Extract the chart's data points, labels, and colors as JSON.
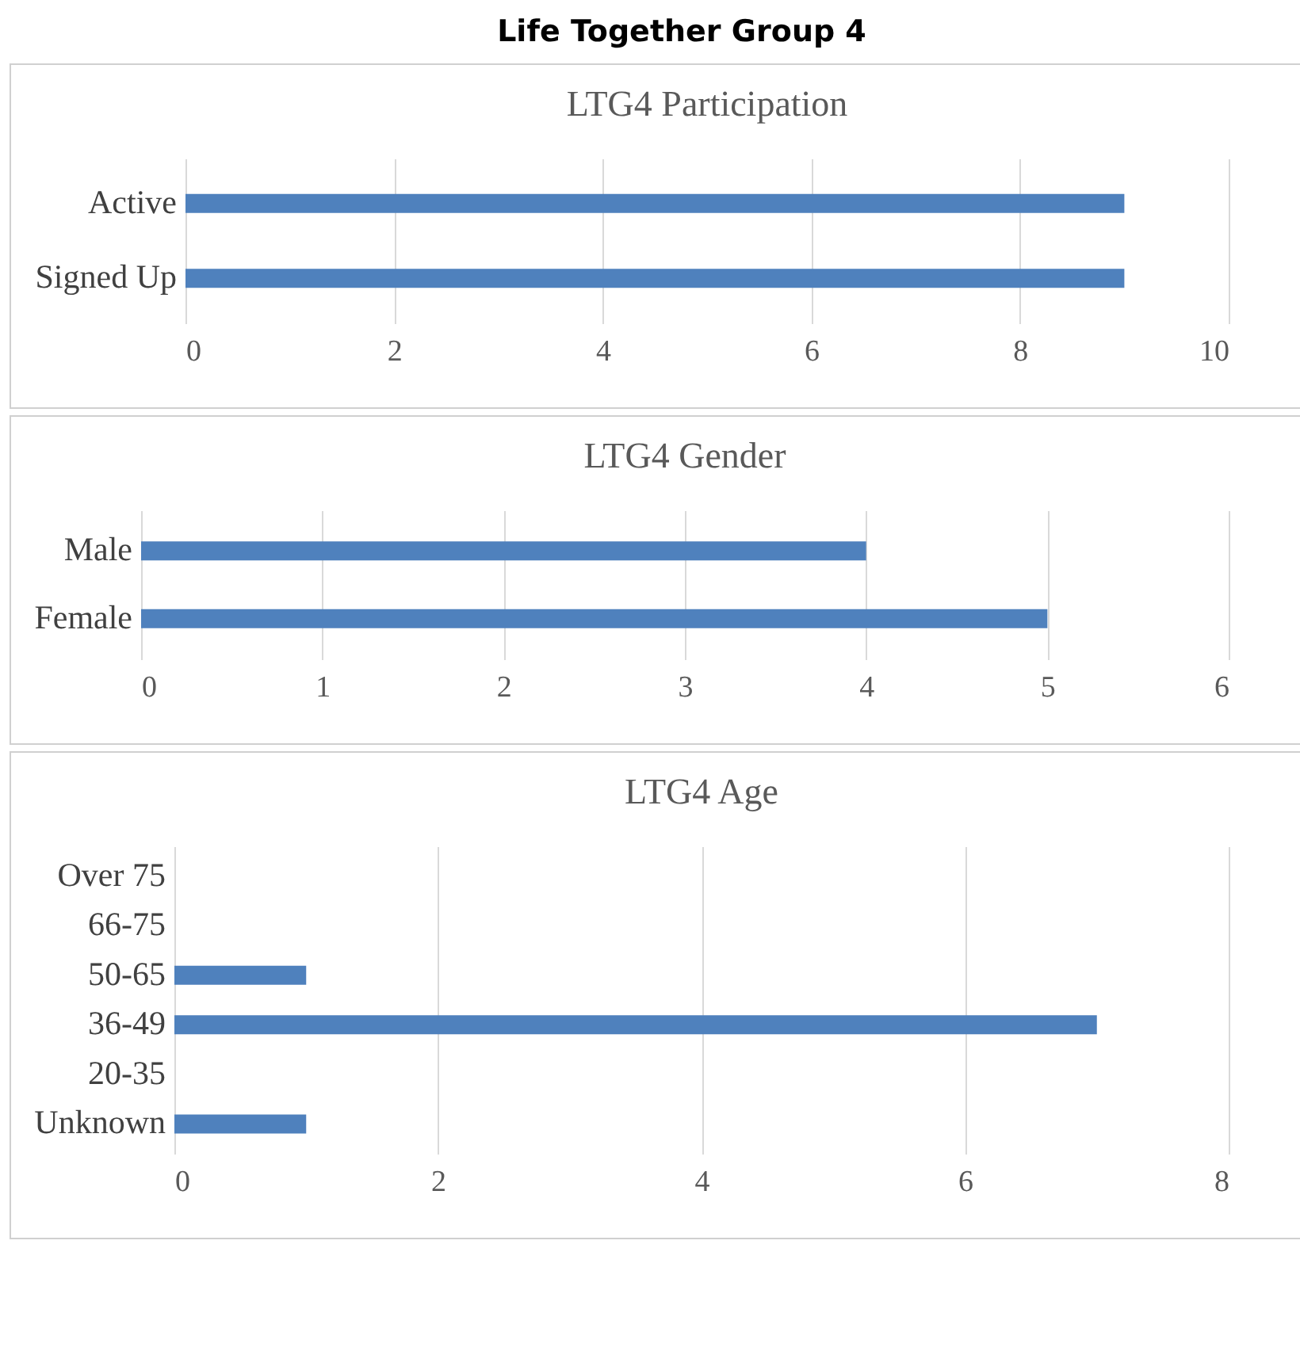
{
  "chart_data": [
    {
      "type": "bar",
      "orientation": "horizontal",
      "title": "LTG4 Participation",
      "annotations": [
        "Life Together Group 4"
      ],
      "categories": [
        "Active",
        "Signed Up"
      ],
      "values": [
        9,
        9
      ],
      "color": "#4f81bd",
      "xlim": [
        0,
        10
      ],
      "xticks": [
        0,
        2,
        4,
        6,
        8,
        10
      ],
      "grid": "x"
    },
    {
      "type": "bar",
      "orientation": "horizontal",
      "title": "LTG4 Gender",
      "categories": [
        "Male",
        "Female"
      ],
      "values": [
        4,
        5
      ],
      "color": "#4f81bd",
      "xlim": [
        0,
        6
      ],
      "xticks": [
        0,
        1,
        2,
        3,
        4,
        5,
        6
      ],
      "grid": "x"
    },
    {
      "type": "bar",
      "orientation": "horizontal",
      "title": "LTG4 Age",
      "categories": [
        "Over 75",
        "66-75",
        "50-65",
        "36-49",
        "20-35",
        "Unknown"
      ],
      "values": [
        0,
        0,
        1,
        7,
        0,
        1
      ],
      "color": "#4f81bd",
      "xlim": [
        0,
        8
      ],
      "xticks": [
        0,
        2,
        4,
        6,
        8
      ],
      "grid": "x"
    }
  ]
}
